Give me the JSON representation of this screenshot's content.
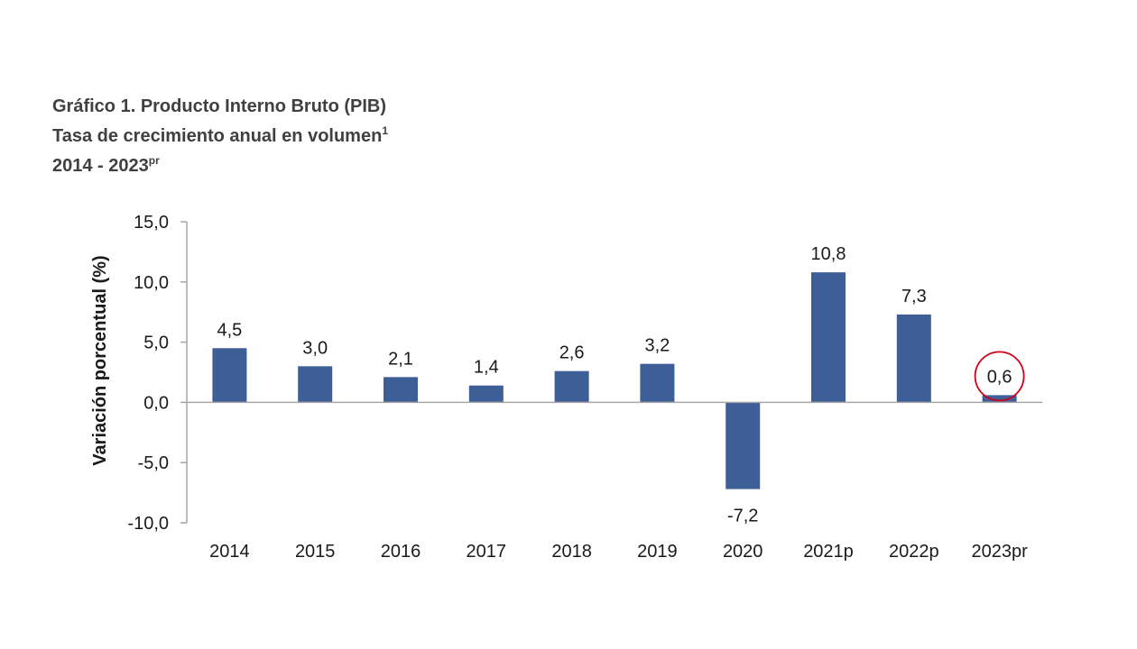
{
  "header": {
    "title_line1": "Gráfico 1. Producto Interno Bruto (PIB)",
    "title_line2": "Tasa de crecimiento anual en volumen",
    "title_line2_sup": "1",
    "title_line3": "2014 - 2023",
    "title_line3_sup": "pr"
  },
  "chart_data": {
    "type": "bar",
    "title": "Gráfico 1. Producto Interno Bruto (PIB) Tasa de crecimiento anual en volumen 2014 - 2023pr",
    "ylabel": "Variación porcentual (%)",
    "xlabel": "",
    "categories": [
      "2014",
      "2015",
      "2016",
      "2017",
      "2018",
      "2019",
      "2020",
      "2021p",
      "2022p",
      "2023pr"
    ],
    "values": [
      4.5,
      3.0,
      2.1,
      1.4,
      2.6,
      3.2,
      -7.2,
      10.8,
      7.3,
      0.6
    ],
    "value_labels": [
      "4,5",
      "3,0",
      "2,1",
      "1,4",
      "2,6",
      "3,2",
      "-7,2",
      "10,8",
      "7,3",
      "0,6"
    ],
    "ylim": [
      -10,
      15
    ],
    "yticks": [
      -10,
      -5,
      0,
      5,
      10,
      15
    ],
    "ytick_labels": [
      "-10,0",
      "-5,0",
      "0,0",
      "5,0",
      "10,0",
      "15,0"
    ],
    "grid": false,
    "legend": "none",
    "highlighted_category": "2023pr",
    "colors": {
      "bar": "#3E5E97",
      "axis": "#A6A6A6",
      "highlight_circle": "#D0021B"
    }
  }
}
